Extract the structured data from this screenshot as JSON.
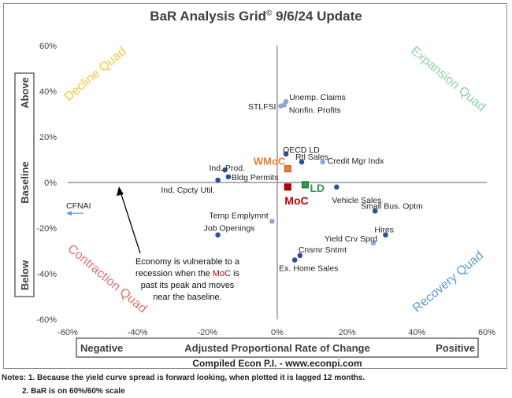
{
  "title": "BaR Analysis Grid",
  "title_mark": "©",
  "title_suffix": " 9/6/24 Update",
  "colors": {
    "point": "#2f4f9c",
    "point_light": "#8fa8d6",
    "moc": "#c00000",
    "wmoc": "#ed7d31",
    "ld": "#2e9d45",
    "decline": "#f5c842",
    "expansion": "#8fd3a0",
    "contraction": "#e07070",
    "recovery": "#5b9bd5"
  },
  "chart_data": {
    "type": "scatter",
    "xlim": [
      -60,
      60
    ],
    "ylim": [
      -60,
      60
    ],
    "x_ticks": [
      -60,
      -40,
      -20,
      0,
      20,
      40,
      60
    ],
    "y_ticks": [
      60,
      40,
      20,
      0,
      -20,
      -40,
      -60
    ],
    "x_tick_labels": [
      "-60%",
      "-40%",
      "-20%",
      "0%",
      "20%",
      "40%",
      "60%"
    ],
    "y_tick_labels": [
      "60%",
      "40%",
      "20%",
      "0%",
      "-20%",
      "-40%",
      "-60%"
    ],
    "xlabel": "Adjusted Proportional Rate of Change",
    "xlabel_left": "Negative",
    "xlabel_right": "Positive",
    "ylabel_top": "Above",
    "ylabel_mid": "Baseline",
    "ylabel_bottom": "Below",
    "subtitle": "Compiled Econ P.I. - www.econpi.com",
    "quadrants": {
      "top_left": "Decline Quad",
      "top_right": "Expansion Quad",
      "bottom_left": "Contraction Quad",
      "bottom_right": "Recovery Quad"
    },
    "points": [
      {
        "label": "Unemp. Claims",
        "x": 2.5,
        "y": 35.5,
        "light": true
      },
      {
        "label": "STLFSI",
        "x": 1.0,
        "y": 33.5,
        "light": true
      },
      {
        "label": "Nonfin. Profits",
        "x": 2.0,
        "y": 34.0,
        "light": true
      },
      {
        "label": "OECD LD",
        "x": 2.5,
        "y": 12.5,
        "light": false
      },
      {
        "label": "Rtl Sales",
        "x": 7.0,
        "y": 9.0,
        "light": false
      },
      {
        "label": "Credit Mgr Indx",
        "x": 13.0,
        "y": 9.0,
        "light": true
      },
      {
        "label": "Ind. Prod.",
        "x": -15.0,
        "y": 5.5,
        "light": false
      },
      {
        "label": "Bldg Permits",
        "x": -14.0,
        "y": 2.5,
        "light": false
      },
      {
        "label": "Ind. Cpcty Util.",
        "x": -17.0,
        "y": 1.0,
        "light": false
      },
      {
        "label": "Vehicle Sales",
        "x": 17.0,
        "y": -2.0,
        "light": false
      },
      {
        "label": "Small Bus. Optm",
        "x": 28.0,
        "y": -12.5,
        "light": false
      },
      {
        "label": "Temp Emplymnt",
        "x": -1.5,
        "y": -17.0,
        "light": true
      },
      {
        "label": "Job Openings",
        "x": -17.0,
        "y": -23.0,
        "light": false
      },
      {
        "label": "Hires",
        "x": 31.0,
        "y": -23.0,
        "light": false
      },
      {
        "label": "Yield Crv Sprd",
        "x": 27.5,
        "y": -26.5,
        "light": true
      },
      {
        "label": "Cnsmr Sntmt",
        "x": 6.5,
        "y": -32.0,
        "light": false
      },
      {
        "label": "Ex. Home Sales",
        "x": 5.0,
        "y": -34.0,
        "light": false
      }
    ],
    "markers": [
      {
        "label": "WMoC",
        "x": 3.0,
        "y": 6.0,
        "kind": "wmoc"
      },
      {
        "label": "MoC",
        "x": 3.0,
        "y": -2.0,
        "kind": "moc"
      },
      {
        "label": "LD",
        "x": 8.0,
        "y": -1.0,
        "kind": "ld"
      }
    ],
    "cfnai": {
      "label": "CFNAI",
      "y": -13.5
    },
    "annotation_lines": [
      "Economy is vulnerable to a",
      "recession when the ",
      "MoC",
      " is",
      "past its peak and moves",
      "near the baseline."
    ]
  },
  "notes": [
    "Notes: 1. Because the yield curve spread is forward looking, when plotted it is lagged 12 months.",
    "2. BaR is on 60%/60% scale"
  ]
}
